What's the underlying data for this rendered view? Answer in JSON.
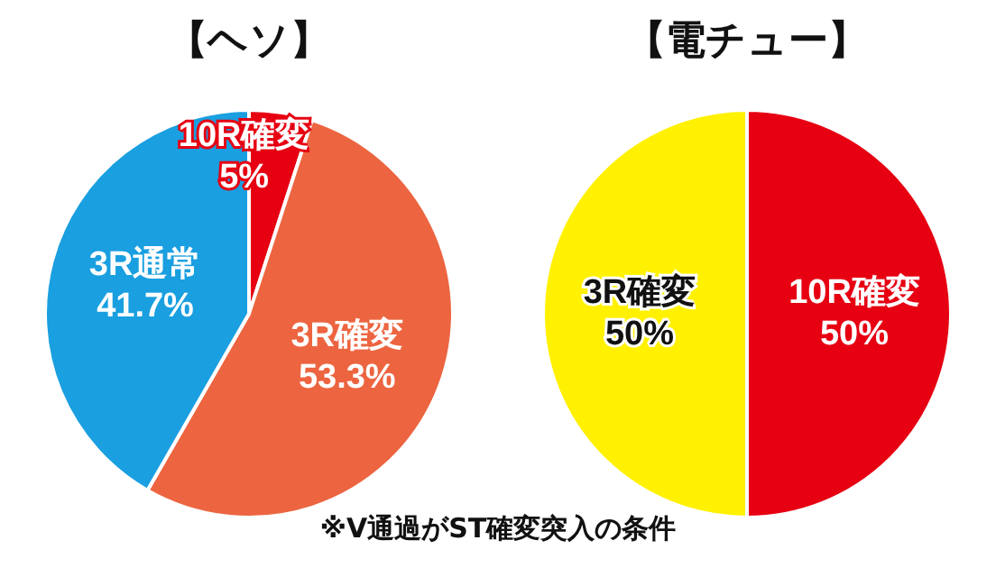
{
  "chart_data": [
    {
      "type": "pie",
      "title": "【ヘソ】",
      "categories": [
        "10R確変",
        "3R確変",
        "3R通常"
      ],
      "values": [
        5,
        53.3,
        41.7
      ],
      "colors": [
        "#e60012",
        "#ec6540",
        "#1a9fe0"
      ],
      "value_labels": [
        "5%",
        "53.3%",
        "41.7%"
      ]
    },
    {
      "type": "pie",
      "title": "【電チュー】",
      "categories": [
        "10R確変",
        "3R確変"
      ],
      "values": [
        50,
        50
      ],
      "colors": [
        "#e60012",
        "#fff100"
      ],
      "value_labels": [
        "50%",
        "50%"
      ],
      "annotations": [
        "※V通過がST確変突入の条件"
      ]
    }
  ]
}
